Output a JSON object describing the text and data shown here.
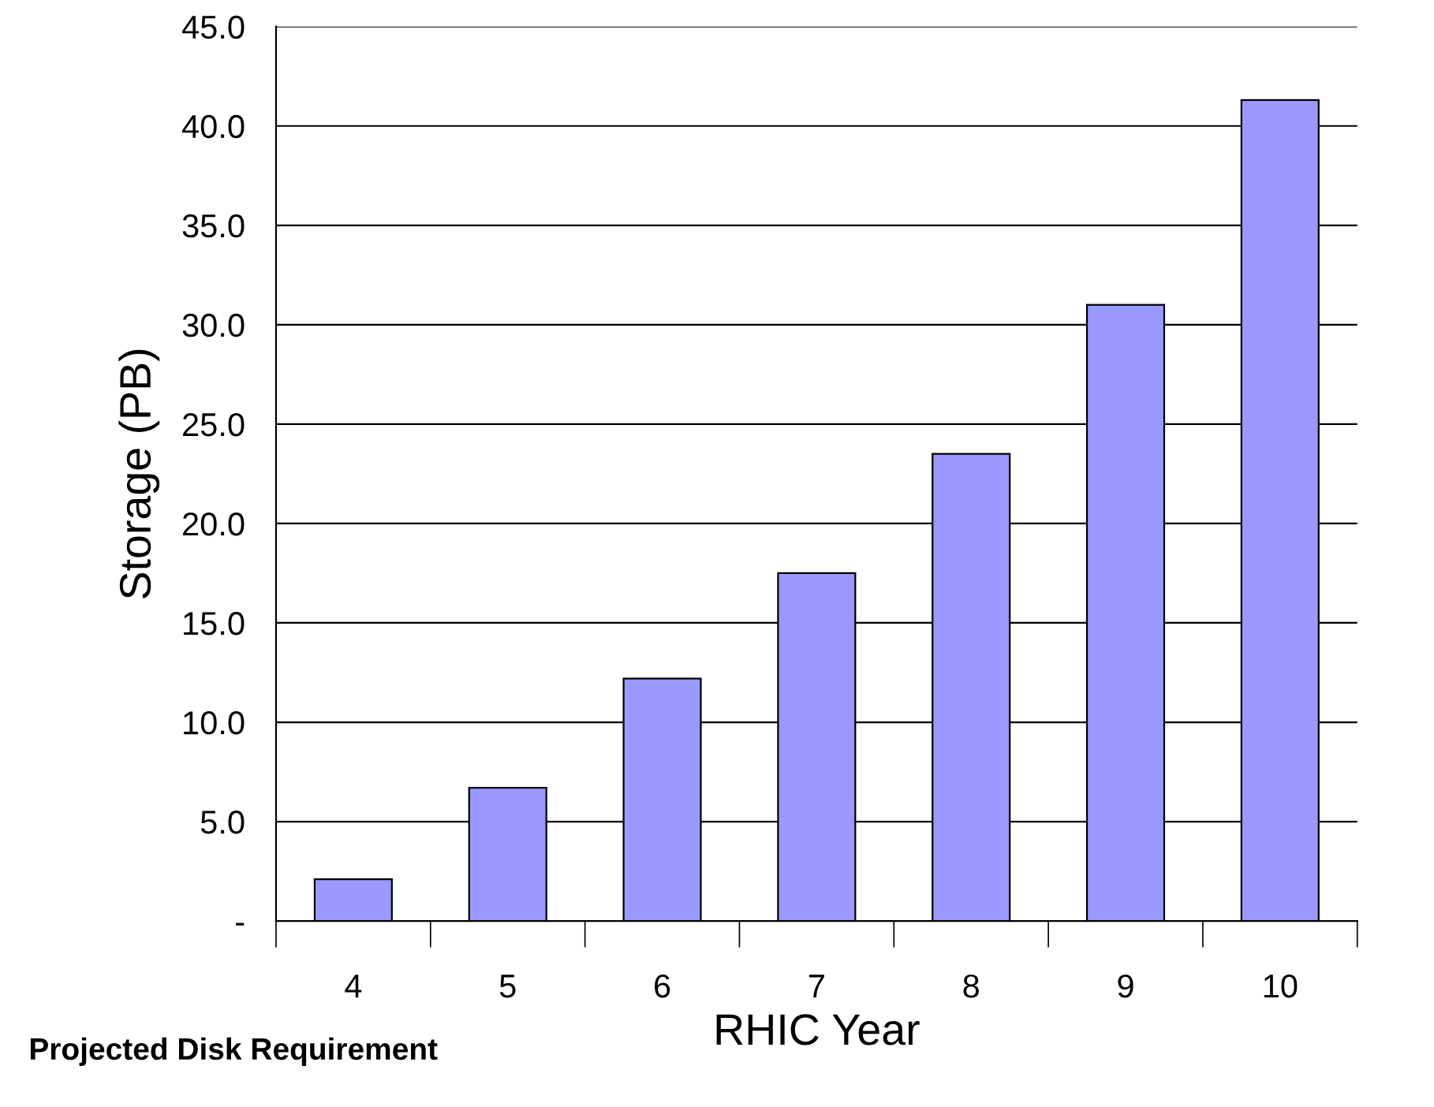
{
  "chart_data": {
    "type": "bar",
    "xlabel": "RHIC Year",
    "ylabel": "Storage (PB)",
    "categories": [
      "4",
      "5",
      "6",
      "7",
      "8",
      "9",
      "10"
    ],
    "values": [
      2.1,
      6.7,
      12.2,
      17.5,
      23.5,
      31.0,
      41.3
    ],
    "color": "#9999ff",
    "ylim": [
      0,
      45
    ],
    "yticks": [
      {
        "value": 0,
        "label": "-"
      },
      {
        "value": 5,
        "label": "5.0"
      },
      {
        "value": 10,
        "label": "10.0"
      },
      {
        "value": 15,
        "label": "15.0"
      },
      {
        "value": 20,
        "label": "20.0"
      },
      {
        "value": 25,
        "label": "25.0"
      },
      {
        "value": 30,
        "label": "30.0"
      },
      {
        "value": 35,
        "label": "35.0"
      },
      {
        "value": 40,
        "label": "40.0"
      },
      {
        "value": 45,
        "label": "45.0"
      }
    ],
    "grid": "y",
    "annotations": [
      "Projected Disk Requirement"
    ]
  }
}
